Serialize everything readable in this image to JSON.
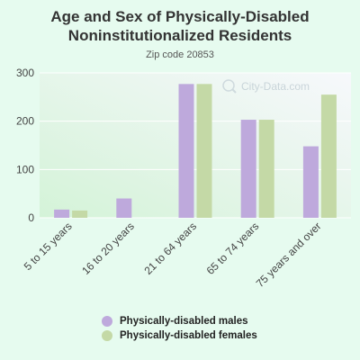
{
  "chart_data": {
    "type": "bar",
    "title": "Age and Sex of Physically-Disabled Noninstitutionalized Residents",
    "subtitle": "Zip code 20853",
    "categories": [
      "5 to 15 years",
      "16 to 20 years",
      "21 to 64 years",
      "65 to 74 years",
      "75 years and over"
    ],
    "series": [
      {
        "name": "Physically-disabled males",
        "color": "#bea9dc",
        "values": [
          17,
          40,
          277,
          203,
          148
        ]
      },
      {
        "name": "Physically-disabled females",
        "color": "#c4d9a6",
        "values": [
          15,
          0,
          277,
          203,
          255
        ]
      }
    ],
    "ylim": [
      0,
      300
    ],
    "yticks": [
      "0",
      "100",
      "200",
      "300"
    ],
    "grid": true,
    "legend_position": "bottom",
    "watermark": "City-Data.com"
  }
}
